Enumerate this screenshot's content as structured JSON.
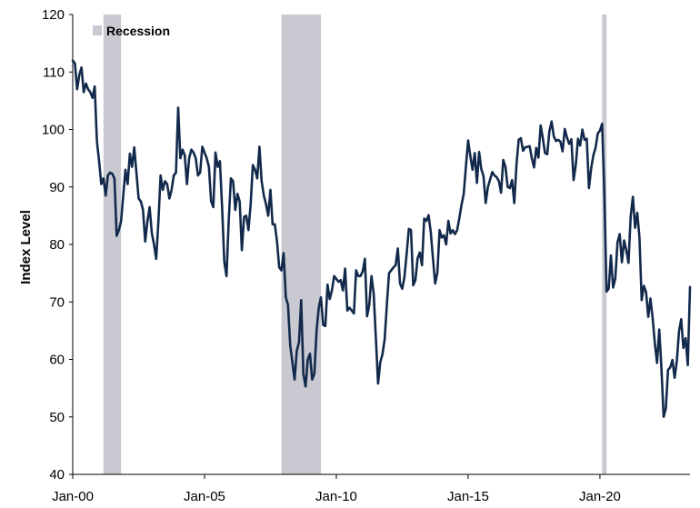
{
  "chart_data": {
    "type": "line",
    "title": "",
    "xlabel": "",
    "ylabel": "Index Level",
    "ylim": [
      40,
      120
    ],
    "yticks": [
      "40",
      "50",
      "60",
      "70",
      "80",
      "90",
      "100",
      "110",
      "120"
    ],
    "xlim": [
      "2000-01",
      "2023-06"
    ],
    "xticks": [
      {
        "label": "Jan-00",
        "date": "2000-01"
      },
      {
        "label": "Jan-05",
        "date": "2005-01"
      },
      {
        "label": "Jan-10",
        "date": "2010-01"
      },
      {
        "label": "Jan-15",
        "date": "2015-01"
      },
      {
        "label": "Jan-20",
        "date": "2020-01"
      }
    ],
    "grid": false,
    "legend": {
      "placement": "top-left",
      "entries": [
        {
          "label": "Recession",
          "color": "#c8c9d1"
        }
      ]
    },
    "recessions": [
      {
        "start": "2001-03",
        "end": "2001-11"
      },
      {
        "start": "2007-12",
        "end": "2009-06"
      },
      {
        "start": "2020-02",
        "end": "2020-04"
      }
    ],
    "series": [
      {
        "color": "#13294b",
        "points": [
          [
            "2000-01",
            112.0
          ],
          [
            "2000-02",
            111.5
          ],
          [
            "2000-03",
            107.0
          ],
          [
            "2000-04",
            109.5
          ],
          [
            "2000-05",
            110.8
          ],
          [
            "2000-06",
            106.5
          ],
          [
            "2000-07",
            108.0
          ],
          [
            "2000-08",
            107.0
          ],
          [
            "2000-09",
            106.5
          ],
          [
            "2000-10",
            105.5
          ],
          [
            "2000-11",
            107.5
          ],
          [
            "2000-12",
            98.0
          ],
          [
            "2001-01",
            94.5
          ],
          [
            "2001-02",
            90.5
          ],
          [
            "2001-03",
            91.5
          ],
          [
            "2001-04",
            88.5
          ],
          [
            "2001-05",
            92.0
          ],
          [
            "2001-06",
            92.5
          ],
          [
            "2001-07",
            92.3
          ],
          [
            "2001-08",
            91.5
          ],
          [
            "2001-09",
            81.5
          ],
          [
            "2001-10",
            82.5
          ],
          [
            "2001-11",
            84.0
          ],
          [
            "2001-12",
            88.5
          ],
          [
            "2002-01",
            93.0
          ],
          [
            "2002-02",
            90.5
          ],
          [
            "2002-03",
            95.8
          ],
          [
            "2002-04",
            93.5
          ],
          [
            "2002-05",
            96.9
          ],
          [
            "2002-06",
            92.5
          ],
          [
            "2002-07",
            88.0
          ],
          [
            "2002-08",
            87.5
          ],
          [
            "2002-09",
            86.0
          ],
          [
            "2002-10",
            80.5
          ],
          [
            "2002-11",
            84.0
          ],
          [
            "2002-12",
            86.5
          ],
          [
            "2003-01",
            82.0
          ],
          [
            "2003-02",
            80.0
          ],
          [
            "2003-03",
            77.5
          ],
          [
            "2003-04",
            84.0
          ],
          [
            "2003-05",
            92.0
          ],
          [
            "2003-06",
            89.5
          ],
          [
            "2003-07",
            91.0
          ],
          [
            "2003-08",
            90.5
          ],
          [
            "2003-09",
            88.0
          ],
          [
            "2003-10",
            89.5
          ],
          [
            "2003-11",
            92.0
          ],
          [
            "2003-12",
            92.5
          ],
          [
            "2004-01",
            103.8
          ],
          [
            "2004-02",
            95.0
          ],
          [
            "2004-03",
            96.5
          ],
          [
            "2004-04",
            95.5
          ],
          [
            "2004-05",
            90.5
          ],
          [
            "2004-06",
            95.0
          ],
          [
            "2004-07",
            96.5
          ],
          [
            "2004-08",
            96.0
          ],
          [
            "2004-09",
            95.0
          ],
          [
            "2004-10",
            92.0
          ],
          [
            "2004-11",
            92.5
          ],
          [
            "2004-12",
            97.0
          ],
          [
            "2005-01",
            96.0
          ],
          [
            "2005-02",
            95.0
          ],
          [
            "2005-03",
            93.5
          ],
          [
            "2005-04",
            87.5
          ],
          [
            "2005-05",
            86.5
          ],
          [
            "2005-06",
            96.0
          ],
          [
            "2005-07",
            93.5
          ],
          [
            "2005-08",
            94.5
          ],
          [
            "2005-09",
            86.5
          ],
          [
            "2005-10",
            77.0
          ],
          [
            "2005-11",
            74.5
          ],
          [
            "2005-12",
            84.0
          ],
          [
            "2006-01",
            91.5
          ],
          [
            "2006-02",
            91.0
          ],
          [
            "2006-03",
            86.0
          ],
          [
            "2006-04",
            88.8
          ],
          [
            "2006-05",
            87.5
          ],
          [
            "2006-06",
            79.0
          ],
          [
            "2006-07",
            84.8
          ],
          [
            "2006-08",
            85.0
          ],
          [
            "2006-09",
            82.5
          ],
          [
            "2006-10",
            87.0
          ],
          [
            "2006-11",
            93.8
          ],
          [
            "2006-12",
            93.0
          ],
          [
            "2007-01",
            91.5
          ],
          [
            "2007-02",
            97.0
          ],
          [
            "2007-03",
            91.0
          ],
          [
            "2007-04",
            88.5
          ],
          [
            "2007-05",
            87.0
          ],
          [
            "2007-06",
            85.0
          ],
          [
            "2007-07",
            89.5
          ],
          [
            "2007-08",
            83.5
          ],
          [
            "2007-09",
            83.5
          ],
          [
            "2007-10",
            80.5
          ],
          [
            "2007-11",
            76.0
          ],
          [
            "2007-12",
            75.5
          ],
          [
            "2008-01",
            78.5
          ],
          [
            "2008-02",
            70.8
          ],
          [
            "2008-03",
            69.5
          ],
          [
            "2008-04",
            62.5
          ],
          [
            "2008-05",
            59.5
          ],
          [
            "2008-06",
            56.5
          ],
          [
            "2008-07",
            61.5
          ],
          [
            "2008-08",
            63.0
          ],
          [
            "2008-09",
            70.3
          ],
          [
            "2008-10",
            57.5
          ],
          [
            "2008-11",
            55.3
          ],
          [
            "2008-12",
            60.0
          ],
          [
            "2009-01",
            61.0
          ],
          [
            "2009-02",
            56.5
          ],
          [
            "2009-03",
            57.5
          ],
          [
            "2009-04",
            65.0
          ],
          [
            "2009-05",
            69.0
          ],
          [
            "2009-06",
            70.8
          ],
          [
            "2009-07",
            66.0
          ],
          [
            "2009-08",
            65.8
          ],
          [
            "2009-09",
            73.0
          ],
          [
            "2009-10",
            70.5
          ],
          [
            "2009-11",
            72.0
          ],
          [
            "2009-12",
            74.5
          ],
          [
            "2010-01",
            74.0
          ],
          [
            "2010-02",
            73.5
          ],
          [
            "2010-03",
            73.8
          ],
          [
            "2010-04",
            72.0
          ],
          [
            "2010-05",
            75.8
          ],
          [
            "2010-06",
            68.5
          ],
          [
            "2010-07",
            69.0
          ],
          [
            "2010-08",
            68.5
          ],
          [
            "2010-09",
            68.0
          ],
          [
            "2010-10",
            75.5
          ],
          [
            "2010-11",
            74.5
          ],
          [
            "2010-12",
            74.5
          ],
          [
            "2011-01",
            75.3
          ],
          [
            "2011-02",
            77.5
          ],
          [
            "2011-03",
            67.5
          ],
          [
            "2011-04",
            69.5
          ],
          [
            "2011-05",
            74.5
          ],
          [
            "2011-06",
            71.5
          ],
          [
            "2011-07",
            63.7
          ],
          [
            "2011-08",
            55.8
          ],
          [
            "2011-09",
            59.5
          ],
          [
            "2011-10",
            60.9
          ],
          [
            "2011-11",
            63.5
          ],
          [
            "2011-12",
            69.5
          ],
          [
            "2012-01",
            75.0
          ],
          [
            "2012-02",
            75.5
          ],
          [
            "2012-03",
            76.0
          ],
          [
            "2012-04",
            76.4
          ],
          [
            "2012-05",
            79.3
          ],
          [
            "2012-06",
            73.2
          ],
          [
            "2012-07",
            72.3
          ],
          [
            "2012-08",
            74.3
          ],
          [
            "2012-09",
            78.3
          ],
          [
            "2012-10",
            82.7
          ],
          [
            "2012-11",
            82.5
          ],
          [
            "2012-12",
            72.9
          ],
          [
            "2013-01",
            73.8
          ],
          [
            "2013-02",
            77.6
          ],
          [
            "2013-03",
            78.6
          ],
          [
            "2013-04",
            76.4
          ],
          [
            "2013-05",
            84.5
          ],
          [
            "2013-06",
            84.1
          ],
          [
            "2013-07",
            85.1
          ],
          [
            "2013-08",
            82.1
          ],
          [
            "2013-09",
            77.5
          ],
          [
            "2013-10",
            73.2
          ],
          [
            "2013-11",
            75.1
          ],
          [
            "2013-12",
            82.5
          ],
          [
            "2014-01",
            81.2
          ],
          [
            "2014-02",
            81.6
          ],
          [
            "2014-03",
            80.0
          ],
          [
            "2014-04",
            84.1
          ],
          [
            "2014-05",
            81.9
          ],
          [
            "2014-06",
            82.5
          ],
          [
            "2014-07",
            81.8
          ],
          [
            "2014-08",
            82.5
          ],
          [
            "2014-09",
            84.6
          ],
          [
            "2014-10",
            86.9
          ],
          [
            "2014-11",
            88.8
          ],
          [
            "2014-12",
            93.6
          ],
          [
            "2015-01",
            98.1
          ],
          [
            "2015-02",
            95.4
          ],
          [
            "2015-03",
            93.0
          ],
          [
            "2015-04",
            95.9
          ],
          [
            "2015-05",
            90.7
          ],
          [
            "2015-06",
            96.1
          ],
          [
            "2015-07",
            93.1
          ],
          [
            "2015-08",
            91.9
          ],
          [
            "2015-09",
            87.2
          ],
          [
            "2015-10",
            90.0
          ],
          [
            "2015-11",
            91.3
          ],
          [
            "2015-12",
            92.6
          ],
          [
            "2016-01",
            92.0
          ],
          [
            "2016-02",
            91.7
          ],
          [
            "2016-03",
            91.0
          ],
          [
            "2016-04",
            89.0
          ],
          [
            "2016-05",
            94.7
          ],
          [
            "2016-06",
            93.5
          ],
          [
            "2016-07",
            90.0
          ],
          [
            "2016-08",
            89.8
          ],
          [
            "2016-09",
            91.2
          ],
          [
            "2016-10",
            87.2
          ],
          [
            "2016-11",
            93.8
          ],
          [
            "2016-12",
            98.2
          ],
          [
            "2017-01",
            98.5
          ],
          [
            "2017-02",
            96.3
          ],
          [
            "2017-03",
            96.9
          ],
          [
            "2017-04",
            97.0
          ],
          [
            "2017-05",
            97.1
          ],
          [
            "2017-06",
            95.0
          ],
          [
            "2017-07",
            93.4
          ],
          [
            "2017-08",
            96.8
          ],
          [
            "2017-09",
            95.1
          ],
          [
            "2017-10",
            100.7
          ],
          [
            "2017-11",
            98.5
          ],
          [
            "2017-12",
            95.9
          ],
          [
            "2018-01",
            95.7
          ],
          [
            "2018-02",
            99.7
          ],
          [
            "2018-03",
            101.4
          ],
          [
            "2018-04",
            98.8
          ],
          [
            "2018-05",
            98.0
          ],
          [
            "2018-06",
            98.2
          ],
          [
            "2018-07",
            97.9
          ],
          [
            "2018-08",
            96.2
          ],
          [
            "2018-09",
            100.1
          ],
          [
            "2018-10",
            98.6
          ],
          [
            "2018-11",
            97.5
          ],
          [
            "2018-12",
            98.3
          ],
          [
            "2019-01",
            91.2
          ],
          [
            "2019-02",
            93.8
          ],
          [
            "2019-03",
            98.4
          ],
          [
            "2019-04",
            97.2
          ],
          [
            "2019-05",
            100.0
          ],
          [
            "2019-06",
            98.2
          ],
          [
            "2019-07",
            98.4
          ],
          [
            "2019-08",
            89.8
          ],
          [
            "2019-09",
            93.2
          ],
          [
            "2019-10",
            95.5
          ],
          [
            "2019-11",
            96.8
          ],
          [
            "2019-12",
            99.3
          ],
          [
            "2020-01",
            99.8
          ],
          [
            "2020-02",
            101.0
          ],
          [
            "2020-03",
            89.1
          ],
          [
            "2020-04",
            71.8
          ],
          [
            "2020-05",
            72.3
          ],
          [
            "2020-06",
            78.1
          ],
          [
            "2020-07",
            72.5
          ],
          [
            "2020-08",
            74.1
          ],
          [
            "2020-09",
            80.4
          ],
          [
            "2020-10",
            81.8
          ],
          [
            "2020-11",
            76.9
          ],
          [
            "2020-12",
            80.7
          ],
          [
            "2021-01",
            79.0
          ],
          [
            "2021-02",
            76.8
          ],
          [
            "2021-03",
            84.9
          ],
          [
            "2021-04",
            88.3
          ],
          [
            "2021-05",
            82.9
          ],
          [
            "2021-06",
            85.5
          ],
          [
            "2021-07",
            81.2
          ],
          [
            "2021-08",
            70.3
          ],
          [
            "2021-09",
            72.8
          ],
          [
            "2021-10",
            71.7
          ],
          [
            "2021-11",
            67.4
          ],
          [
            "2021-12",
            70.6
          ],
          [
            "2022-01",
            67.2
          ],
          [
            "2022-02",
            62.8
          ],
          [
            "2022-03",
            59.4
          ],
          [
            "2022-04",
            65.2
          ],
          [
            "2022-05",
            58.4
          ],
          [
            "2022-06",
            50.0
          ],
          [
            "2022-07",
            51.5
          ],
          [
            "2022-08",
            58.2
          ],
          [
            "2022-09",
            58.6
          ],
          [
            "2022-10",
            59.9
          ],
          [
            "2022-11",
            56.8
          ],
          [
            "2022-12",
            59.7
          ],
          [
            "2023-01",
            64.9
          ],
          [
            "2023-02",
            67.0
          ],
          [
            "2023-03",
            62.0
          ],
          [
            "2023-04",
            63.7
          ],
          [
            "2023-05",
            59.0
          ],
          [
            "2023-06",
            72.6
          ]
        ]
      }
    ]
  }
}
